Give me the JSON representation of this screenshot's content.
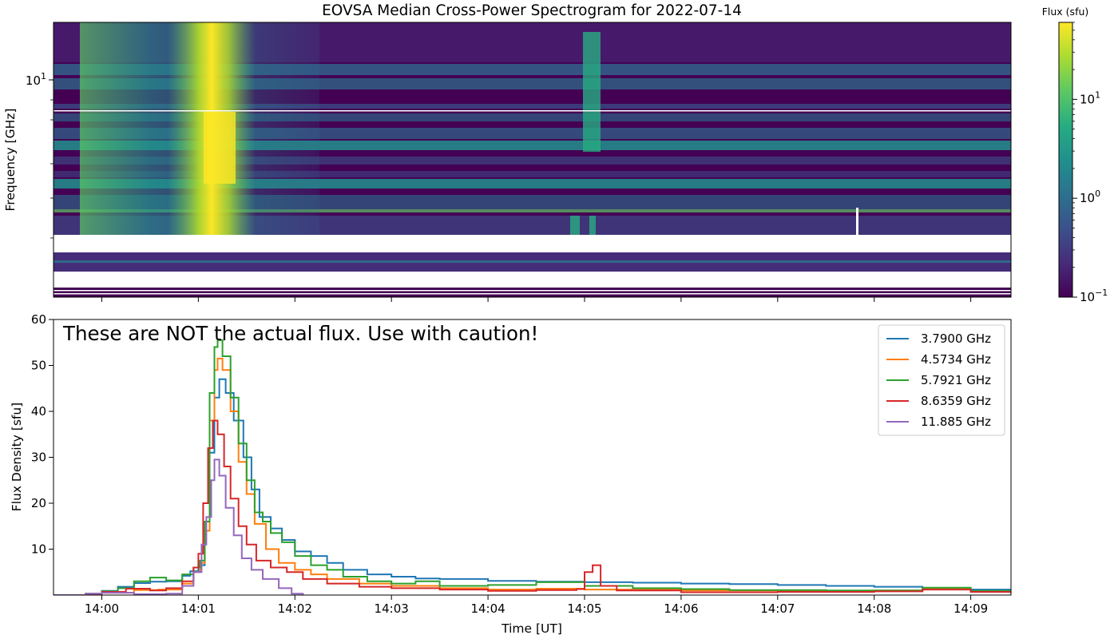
{
  "title": "EOVSA Median Cross-Power Spectrogram for 2022-07-14",
  "colorbar": {
    "label": "Flux (sfu)",
    "ticks": [
      {
        "base": "10",
        "exp": "1",
        "value": 10
      },
      {
        "base": "10",
        "exp": "0",
        "value": 1
      },
      {
        "base": "10",
        "exp": "−1",
        "value": 0.1
      }
    ],
    "range": [
      0.1,
      60
    ],
    "scale": "log",
    "colormap": "viridis"
  },
  "chart_data": [
    {
      "type": "heatmap",
      "title": "EOVSA Median Cross-Power Spectrogram for 2022-07-14",
      "ylabel": "Frequency [GHz]",
      "yscale": "log",
      "ytick_label": {
        "base": "10",
        "exp": "1",
        "value": 10
      },
      "x_range": [
        "13:59:30",
        "14:09:25"
      ],
      "value_scale": "log",
      "value_range": [
        0.1,
        60
      ],
      "colormap": "viridis",
      "colorbar_label": "Flux (sfu)",
      "features": {
        "burst_peak_time": "14:01:10",
        "secondary_burst_time": "14:05:00",
        "data_gap": "frequency gap between upper and lower bands",
        "bright_bands": "persistent horizontal emission bands at several frequencies"
      }
    },
    {
      "type": "line",
      "xlabel": "Time [UT]",
      "ylabel": "Flux Density [sfu]",
      "xlim": [
        "13:59:30",
        "14:09:25"
      ],
      "ylim": [
        0,
        60
      ],
      "xticks": [
        "14:00",
        "14:01",
        "14:02",
        "14:03",
        "14:04",
        "14:05",
        "14:06",
        "14:07",
        "14:08",
        "14:09"
      ],
      "yticks": [
        10,
        20,
        30,
        40,
        50,
        60
      ],
      "annotation": "These are NOT the actual flux. Use with caution!",
      "legend_placement": "top-right",
      "step": true,
      "series": [
        {
          "name": "3.7900 GHz",
          "color": "#1f77b4",
          "points": [
            [
              "13:59:30",
              0
            ],
            [
              "13:59:50",
              0.3
            ],
            [
              "14:00:00",
              0.9
            ],
            [
              "14:00:10",
              1.8
            ],
            [
              "14:00:20",
              2.6
            ],
            [
              "14:00:30",
              2.9
            ],
            [
              "14:00:40",
              3.0
            ],
            [
              "14:00:50",
              4.2
            ],
            [
              "14:00:55",
              5.2
            ],
            [
              "14:01:00",
              6.5
            ],
            [
              "14:01:04",
              14
            ],
            [
              "14:01:07",
              31
            ],
            [
              "14:01:10",
              43
            ],
            [
              "14:01:13",
              47
            ],
            [
              "14:01:17",
              44
            ],
            [
              "14:01:22",
              38
            ],
            [
              "14:01:28",
              30
            ],
            [
              "14:01:33",
              23
            ],
            [
              "14:01:38",
              17
            ],
            [
              "14:01:45",
              14.5
            ],
            [
              "14:01:52",
              12
            ],
            [
              "14:02:00",
              9.5
            ],
            [
              "14:02:10",
              8.5
            ],
            [
              "14:02:20",
              7
            ],
            [
              "14:02:30",
              5.5
            ],
            [
              "14:02:45",
              4.5
            ],
            [
              "14:03:00",
              4
            ],
            [
              "14:03:15",
              3.6
            ],
            [
              "14:03:30",
              3.5
            ],
            [
              "14:04:00",
              3.1
            ],
            [
              "14:04:30",
              2.9
            ],
            [
              "14:05:00",
              2.8
            ],
            [
              "14:05:30",
              2.7
            ],
            [
              "14:06:00",
              2.5
            ],
            [
              "14:06:30",
              2.4
            ],
            [
              "14:07:00",
              2.2
            ],
            [
              "14:07:30",
              2
            ],
            [
              "14:08:00",
              1.8
            ],
            [
              "14:08:30",
              1.5
            ],
            [
              "14:09:00",
              1.2
            ],
            [
              "14:09:25",
              1.1
            ]
          ]
        },
        {
          "name": "4.5734 GHz",
          "color": "#ff7f0e",
          "points": [
            [
              "13:59:30",
              0
            ],
            [
              "13:59:50",
              0.1
            ],
            [
              "14:00:00",
              0.5
            ],
            [
              "14:00:20",
              1.1
            ],
            [
              "14:00:35",
              1.2
            ],
            [
              "14:00:50",
              2.5
            ],
            [
              "14:00:57",
              5
            ],
            [
              "14:01:01",
              7
            ],
            [
              "14:01:04",
              14
            ],
            [
              "14:01:07",
              38
            ],
            [
              "14:01:10",
              49
            ],
            [
              "14:01:12",
              51.5
            ],
            [
              "14:01:15",
              49
            ],
            [
              "14:01:20",
              40
            ],
            [
              "14:01:25",
              29
            ],
            [
              "14:01:30",
              22
            ],
            [
              "14:01:35",
              15.5
            ],
            [
              "14:01:42",
              10
            ],
            [
              "14:01:50",
              7
            ],
            [
              "14:02:00",
              5.5
            ],
            [
              "14:02:10",
              4.5
            ],
            [
              "14:02:20",
              3.5
            ],
            [
              "14:02:40",
              2.5
            ],
            [
              "14:03:00",
              2
            ],
            [
              "14:03:30",
              1.5
            ],
            [
              "14:04:00",
              1.2
            ],
            [
              "14:04:30",
              1.4
            ],
            [
              "14:05:00",
              1.2
            ],
            [
              "14:06:00",
              1
            ],
            [
              "14:07:00",
              0.9
            ],
            [
              "14:08:00",
              1
            ],
            [
              "14:08:30",
              1.3
            ],
            [
              "14:09:00",
              0.8
            ],
            [
              "14:09:25",
              0.6
            ]
          ]
        },
        {
          "name": "5.7921 GHz",
          "color": "#2ca02c",
          "points": [
            [
              "13:59:30",
              0
            ],
            [
              "13:59:50",
              0.3
            ],
            [
              "14:00:00",
              0.8
            ],
            [
              "14:00:10",
              1.5
            ],
            [
              "14:00:20",
              3
            ],
            [
              "14:00:30",
              3.8
            ],
            [
              "14:00:40",
              3.2
            ],
            [
              "14:00:50",
              4.5
            ],
            [
              "14:00:57",
              6
            ],
            [
              "14:01:01",
              7.5
            ],
            [
              "14:01:04",
              16
            ],
            [
              "14:01:07",
              44
            ],
            [
              "14:01:10",
              54
            ],
            [
              "14:01:12",
              55.5
            ],
            [
              "14:01:15",
              52
            ],
            [
              "14:01:20",
              43
            ],
            [
              "14:01:25",
              33
            ],
            [
              "14:01:30",
              25
            ],
            [
              "14:01:35",
              18
            ],
            [
              "14:01:40",
              16
            ],
            [
              "14:01:45",
              13.5
            ],
            [
              "14:01:52",
              11.5
            ],
            [
              "14:02:00",
              8.5
            ],
            [
              "14:02:10",
              6.5
            ],
            [
              "14:02:20",
              5.5
            ],
            [
              "14:02:30",
              4
            ],
            [
              "14:02:45",
              3
            ],
            [
              "14:03:00",
              2.5
            ],
            [
              "14:03:15",
              3
            ],
            [
              "14:03:30",
              2
            ],
            [
              "14:04:00",
              2.2
            ],
            [
              "14:04:30",
              2.8
            ],
            [
              "14:05:00",
              2
            ],
            [
              "14:05:30",
              1.5
            ],
            [
              "14:06:00",
              1.3
            ],
            [
              "14:06:30",
              1.1
            ],
            [
              "14:07:00",
              1.1
            ],
            [
              "14:07:30",
              1
            ],
            [
              "14:08:00",
              1
            ],
            [
              "14:08:30",
              1.6
            ],
            [
              "14:09:00",
              0.9
            ],
            [
              "14:09:25",
              0.7
            ]
          ]
        },
        {
          "name": "8.6359 GHz",
          "color": "#d62728",
          "points": [
            [
              "13:59:30",
              0
            ],
            [
              "13:59:50",
              0.1
            ],
            [
              "14:00:00",
              0.7
            ],
            [
              "14:00:15",
              1.4
            ],
            [
              "14:00:30",
              1
            ],
            [
              "14:00:40",
              1.5
            ],
            [
              "14:00:50",
              3
            ],
            [
              "14:00:57",
              6
            ],
            [
              "14:01:00",
              9
            ],
            [
              "14:01:03",
              20
            ],
            [
              "14:01:06",
              32
            ],
            [
              "14:01:09",
              38
            ],
            [
              "14:01:12",
              35
            ],
            [
              "14:01:16",
              28
            ],
            [
              "14:01:20",
              21
            ],
            [
              "14:01:25",
              15
            ],
            [
              "14:01:30",
              11
            ],
            [
              "14:01:36",
              7.5
            ],
            [
              "14:01:45",
              6
            ],
            [
              "14:01:55",
              5
            ],
            [
              "14:02:05",
              3.5
            ],
            [
              "14:02:20",
              2.5
            ],
            [
              "14:02:40",
              1.8
            ],
            [
              "14:03:00",
              1.5
            ],
            [
              "14:03:30",
              1.2
            ],
            [
              "14:04:00",
              0.9
            ],
            [
              "14:04:30",
              1.1
            ],
            [
              "14:04:55",
              1.3
            ],
            [
              "14:05:00",
              5
            ],
            [
              "14:05:05",
              6.5
            ],
            [
              "14:05:10",
              2
            ],
            [
              "14:05:20",
              1
            ],
            [
              "14:06:00",
              0.6
            ],
            [
              "14:07:00",
              0.7
            ],
            [
              "14:08:00",
              0.8
            ],
            [
              "14:08:30",
              1.2
            ],
            [
              "14:09:00",
              0.7
            ],
            [
              "14:09:25",
              0.4
            ]
          ]
        },
        {
          "name": "11.885 GHz",
          "color": "#9467bd",
          "points": [
            [
              "13:59:30",
              0
            ],
            [
              "13:59:50",
              0.3
            ],
            [
              "14:00:00",
              0.5
            ],
            [
              "14:00:20",
              0.2
            ],
            [
              "14:00:40",
              0.3
            ],
            [
              "14:00:50",
              2
            ],
            [
              "14:00:57",
              5
            ],
            [
              "14:01:02",
              11
            ],
            [
              "14:01:05",
              17
            ],
            [
              "14:01:08",
              25
            ],
            [
              "14:01:10",
              29.5
            ],
            [
              "14:01:13",
              26
            ],
            [
              "14:01:17",
              19
            ],
            [
              "14:01:22",
              13
            ],
            [
              "14:01:27",
              8
            ],
            [
              "14:01:33",
              5.5
            ],
            [
              "14:01:40",
              3.5
            ],
            [
              "14:01:50",
              1.5
            ],
            [
              "14:01:58",
              0.3
            ],
            [
              "14:02:05",
              0
            ]
          ]
        }
      ]
    }
  ]
}
